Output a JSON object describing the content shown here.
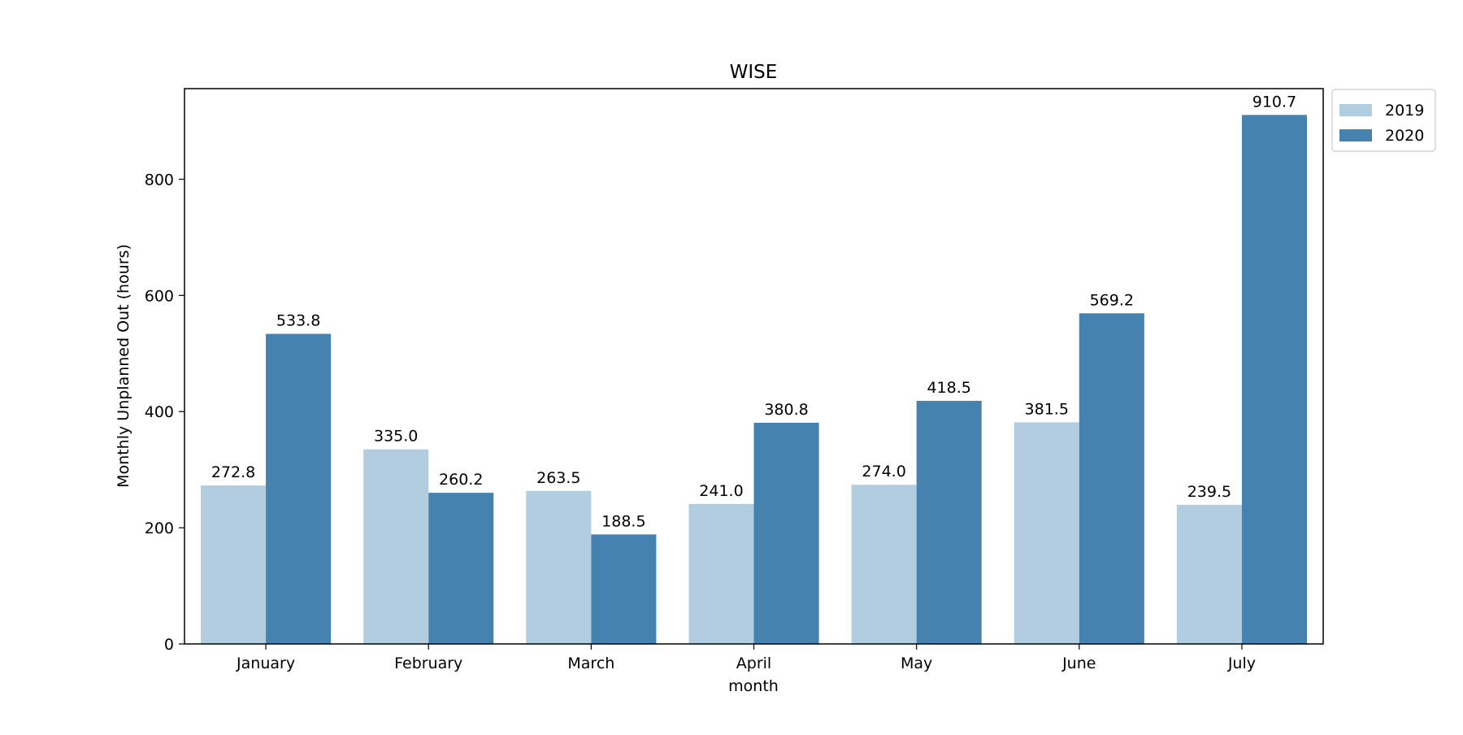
{
  "chart_data": {
    "type": "bar",
    "title": "WISE",
    "xlabel": "month",
    "ylabel": "Monthly Unplanned Out (hours)",
    "categories": [
      "January",
      "February",
      "March",
      "April",
      "May",
      "June",
      "July"
    ],
    "series": [
      {
        "name": "2019",
        "color": "#b3cde0",
        "values": [
          272.8,
          335.0,
          263.5,
          241.0,
          274.0,
          381.5,
          239.5
        ],
        "labels": [
          "272.8",
          "335.0",
          "263.5",
          "241.0",
          "274.0",
          "381.5",
          "239.5"
        ]
      },
      {
        "name": "2020",
        "color": "#4682b0",
        "values": [
          533.8,
          260.2,
          188.5,
          380.8,
          418.5,
          569.2,
          910.7
        ],
        "labels": [
          "533.8",
          "260.2",
          "188.5",
          "380.8",
          "418.5",
          "569.2",
          "910.7"
        ]
      }
    ],
    "ylim": [
      0,
      956
    ],
    "yticks": [
      0,
      200,
      400,
      600,
      800
    ],
    "ytick_labels": [
      "0",
      "200",
      "400",
      "600",
      "800"
    ],
    "grid": false,
    "legend_position": "outside-top-right"
  }
}
